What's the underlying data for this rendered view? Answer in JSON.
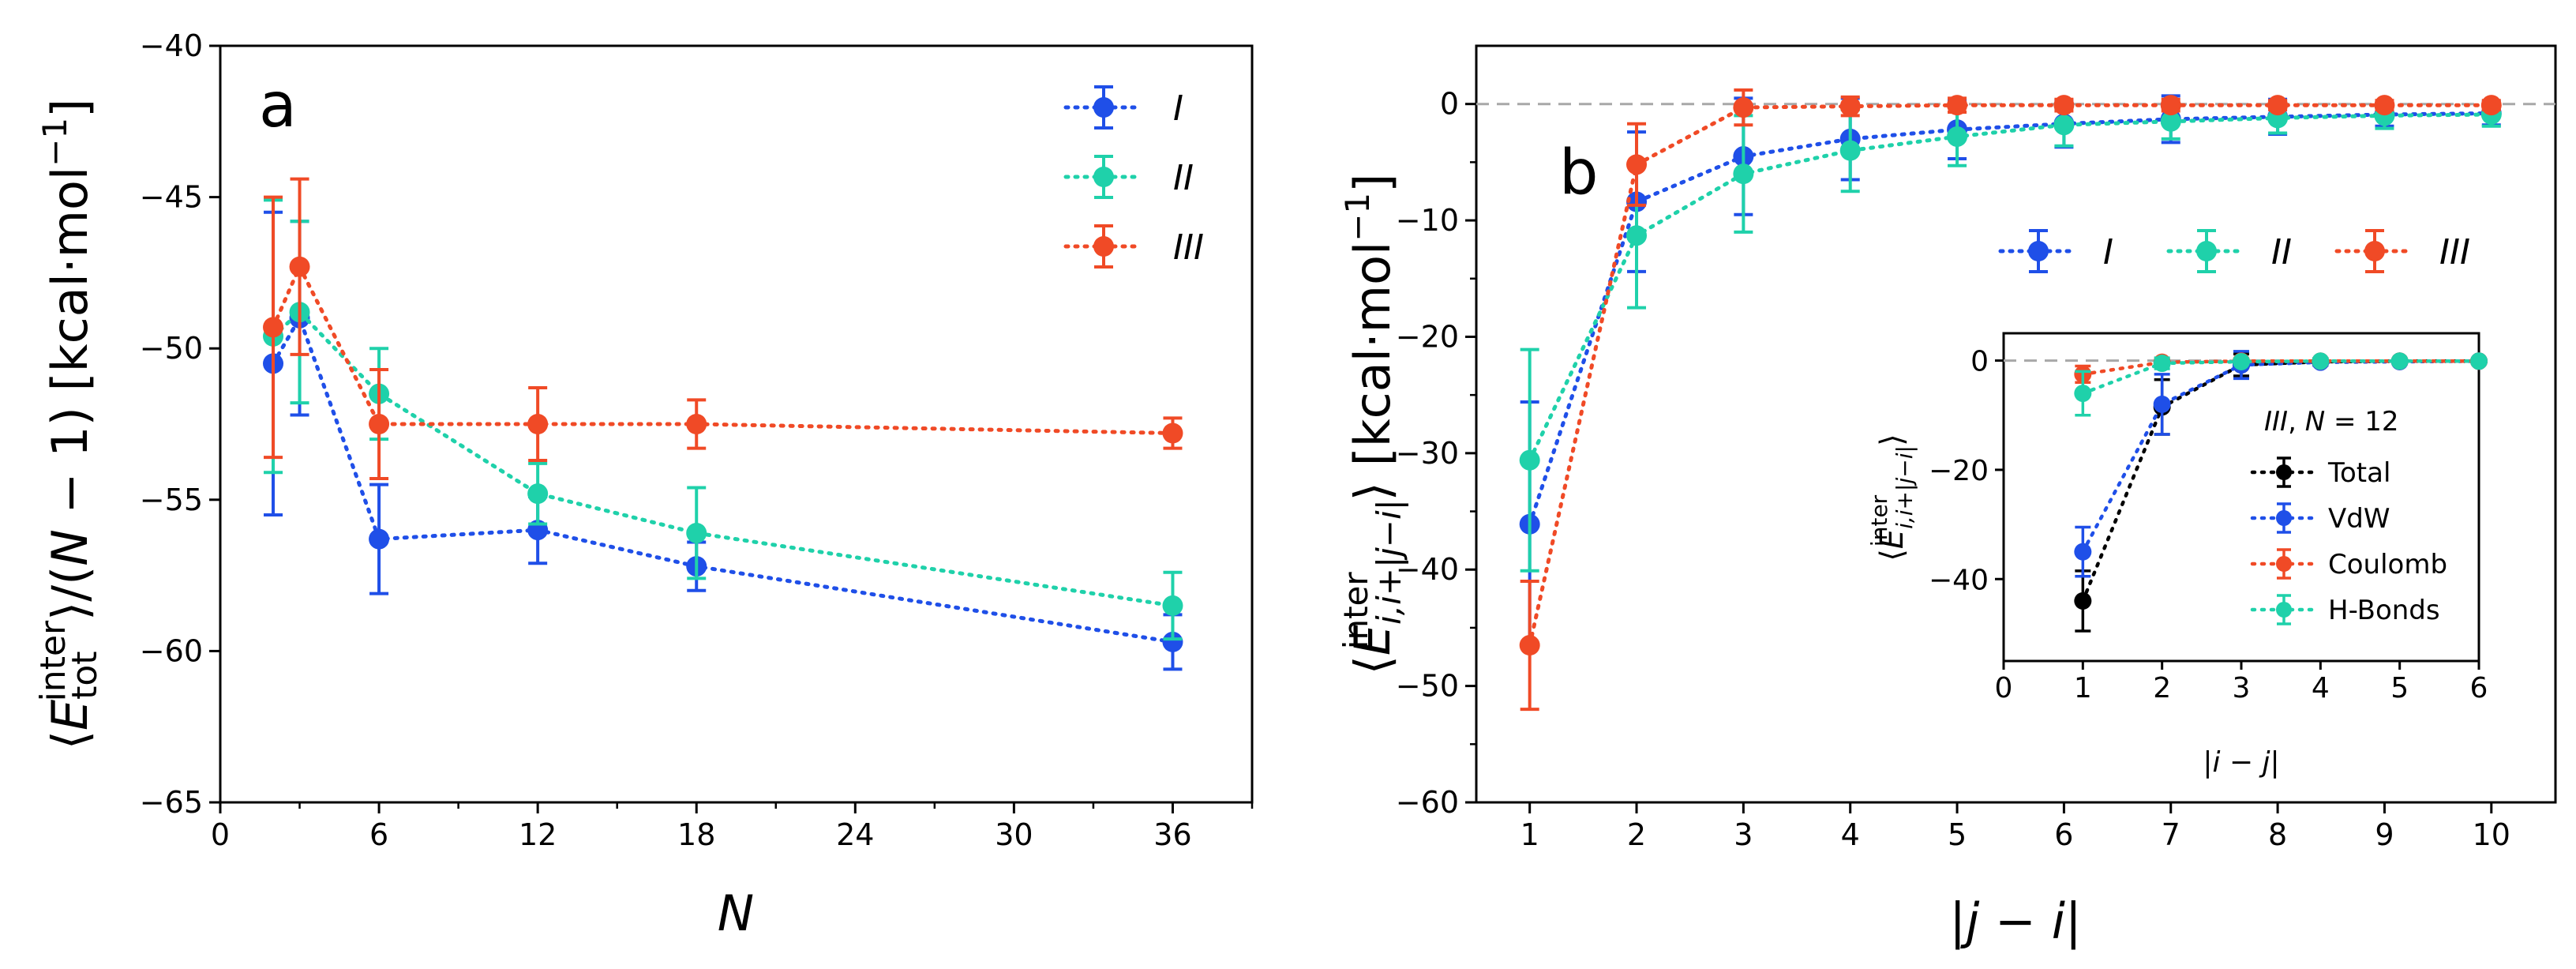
{
  "colors": {
    "I": "#1f4fe8",
    "II": "#1fd1aa",
    "III": "#f04a26",
    "Total": "#000000"
  },
  "panel_a": {
    "label": "a"
  },
  "panel_b": {
    "label": "b"
  },
  "chart_data": [
    {
      "type": "line",
      "id": "a",
      "xlabel": "N",
      "ylabel": "⟨E_tot^inter⟩/(N − 1) [kcal·mol⁻¹]",
      "xlim": [
        0,
        39
      ],
      "ylim": [
        -65,
        -40
      ],
      "xticks": [
        0,
        6,
        12,
        18,
        24,
        30,
        36
      ],
      "yticks": [
        -65,
        -60,
        -55,
        -50,
        -45,
        -40
      ],
      "legend_position": "top-right",
      "series": [
        {
          "name": "I",
          "x": [
            2,
            3,
            6,
            12,
            18,
            36
          ],
          "y": [
            -50.5,
            -49.0,
            -56.3,
            -56.0,
            -57.2,
            -59.7
          ],
          "err": [
            5.0,
            3.2,
            1.8,
            1.1,
            0.8,
            0.9
          ]
        },
        {
          "name": "II",
          "x": [
            2,
            3,
            6,
            12,
            18,
            36
          ],
          "y": [
            -49.6,
            -48.8,
            -51.5,
            -54.8,
            -56.1,
            -58.5
          ],
          "err": [
            4.5,
            3.0,
            1.5,
            1.0,
            1.5,
            1.1
          ]
        },
        {
          "name": "III",
          "x": [
            2,
            3,
            6,
            12,
            18,
            36
          ],
          "y": [
            -49.3,
            -47.3,
            -52.5,
            -52.5,
            -52.5,
            -52.8
          ],
          "err": [
            4.3,
            2.9,
            1.8,
            1.2,
            0.8,
            0.5
          ]
        }
      ]
    },
    {
      "type": "line",
      "id": "b",
      "xlabel": "|j − i|",
      "ylabel": "⟨E_{i,i+|j−i|}^inter⟩ [kcal·mol⁻¹]",
      "xlim": [
        0.5,
        10.6
      ],
      "ylim": [
        -60,
        5
      ],
      "xticks": [
        1,
        2,
        3,
        4,
        5,
        6,
        7,
        8,
        9,
        10
      ],
      "yticks": [
        -60,
        -50,
        -40,
        -30,
        -20,
        -10,
        0
      ],
      "zero_line": true,
      "legend_position": "upper-right",
      "series": [
        {
          "name": "I",
          "x": [
            1,
            2,
            3,
            4,
            5,
            6,
            7,
            8,
            9,
            10
          ],
          "y": [
            -36.1,
            -8.4,
            -4.5,
            -3.0,
            -2.2,
            -1.7,
            -1.3,
            -1.1,
            -0.9,
            -0.8
          ],
          "err": [
            10.5,
            6.0,
            5.0,
            3.5,
            2.5,
            2.0,
            2.0,
            1.5,
            1.0,
            1.0
          ]
        },
        {
          "name": "II",
          "x": [
            1,
            2,
            3,
            4,
            5,
            6,
            7,
            8,
            9,
            10
          ],
          "y": [
            -30.6,
            -11.3,
            -6.0,
            -4.0,
            -2.8,
            -1.8,
            -1.5,
            -1.2,
            -1.0,
            -0.9
          ],
          "err": [
            9.5,
            6.2,
            5.0,
            3.5,
            2.5,
            1.8,
            1.5,
            1.3,
            1.1,
            1.0
          ]
        },
        {
          "name": "III",
          "x": [
            1,
            2,
            3,
            4,
            5,
            6,
            7,
            8,
            9,
            10
          ],
          "y": [
            -46.5,
            -5.2,
            -0.3,
            -0.2,
            -0.1,
            -0.1,
            -0.1,
            -0.1,
            -0.1,
            -0.1
          ],
          "err": [
            5.5,
            3.5,
            1.5,
            0.8,
            0.6,
            0.5,
            0.5,
            0.4,
            0.4,
            0.4
          ]
        }
      ]
    },
    {
      "type": "line",
      "id": "b-inset",
      "title": "III, N = 12",
      "xlabel": "|i − j|",
      "ylabel": "⟨E_{i,i+|j−i|}^inter⟩",
      "xlim": [
        0,
        6
      ],
      "ylim": [
        -55,
        5
      ],
      "xticks": [
        0,
        1,
        2,
        3,
        4,
        5,
        6
      ],
      "yticks": [
        -40,
        -20,
        0
      ],
      "zero_line": true,
      "legend_position": "right",
      "series": [
        {
          "name": "Total",
          "x": [
            1,
            2,
            3,
            4,
            5,
            6
          ],
          "y": [
            -44.0,
            -8.5,
            -0.8,
            -0.2,
            -0.1,
            -0.1
          ],
          "err": [
            5.5,
            5.0,
            2.0,
            0.6,
            0.4,
            0.3
          ]
        },
        {
          "name": "VdW",
          "x": [
            1,
            2,
            3,
            4,
            5,
            6
          ],
          "y": [
            -35.0,
            -8.0,
            -0.8,
            -0.3,
            -0.2,
            -0.1
          ],
          "err": [
            4.5,
            5.5,
            2.5,
            0.6,
            0.4,
            0.3
          ]
        },
        {
          "name": "Coulomb",
          "x": [
            1,
            2,
            3,
            4,
            5,
            6
          ],
          "y": [
            -2.5,
            -0.3,
            -0.1,
            -0.1,
            -0.1,
            -0.1
          ],
          "err": [
            1.5,
            0.6,
            0.4,
            0.3,
            0.2,
            0.2
          ]
        },
        {
          "name": "H-Bonds",
          "x": [
            1,
            2,
            3,
            4,
            5,
            6
          ],
          "y": [
            -6.0,
            -0.5,
            -0.2,
            -0.1,
            -0.1,
            -0.1
          ],
          "err": [
            4.0,
            1.0,
            0.5,
            0.3,
            0.2,
            0.2
          ]
        }
      ]
    }
  ]
}
